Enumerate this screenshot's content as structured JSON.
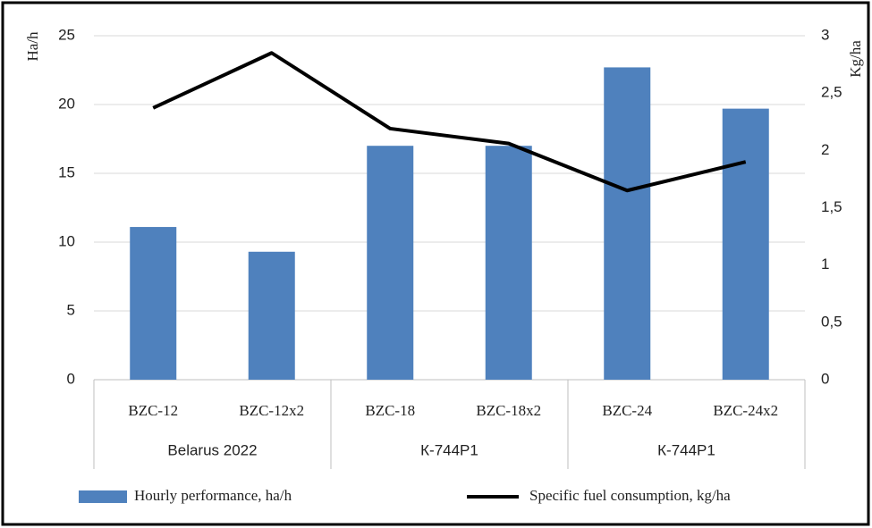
{
  "chart_data": {
    "type": "bar",
    "groups": [
      {
        "name": "Belarus 2022",
        "categories": [
          "BZC-12",
          "BZC-12x2"
        ]
      },
      {
        "name": "К-744Р1",
        "categories": [
          "BZC-18",
          "BZC-18x2"
        ]
      },
      {
        "name": "К-744Р1",
        "categories": [
          "BZC-24",
          "BZC-24x2"
        ]
      }
    ],
    "series": [
      {
        "name": "Hourly performance, ha/h",
        "type": "bar",
        "color": "#4f81bd",
        "values": [
          11.1,
          9.3,
          17.0,
          17.0,
          22.7,
          19.7
        ]
      },
      {
        "name": "Specific fuel consumption, kg/ha",
        "type": "line",
        "axis": "y2",
        "color": "#000000",
        "values": [
          2.37,
          2.85,
          2.19,
          2.06,
          1.65,
          1.9
        ]
      }
    ],
    "ylabel": "Ha/h",
    "y2label": "Kg/ha",
    "ylim": [
      0,
      25
    ],
    "yticks": [
      0,
      5,
      10,
      15,
      20,
      25
    ],
    "y2lim": [
      0,
      3
    ],
    "y2ticks": [
      0,
      {
        "value": 0.5,
        "label": "0,5"
      },
      1,
      {
        "value": 1.5,
        "label": "1,5"
      },
      2,
      {
        "value": 2.5,
        "label": "2,5"
      },
      3
    ],
    "grid": true,
    "legend": "bottom"
  }
}
